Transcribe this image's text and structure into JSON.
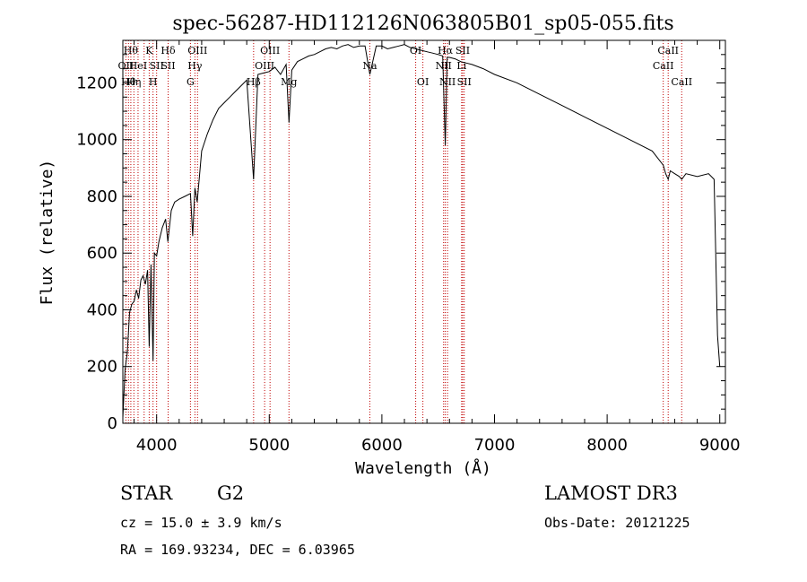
{
  "chart_data": {
    "type": "line",
    "title": "spec-56287-HD112126N063805B01_sp05-055.fits",
    "xlabel": "Wavelength (Å)",
    "ylabel": "Flux (relative)",
    "xlim": [
      3700,
      9050
    ],
    "ylim": [
      0,
      1350
    ],
    "x_ticks": [
      4000,
      5000,
      6000,
      7000,
      8000,
      9000
    ],
    "y_ticks": [
      0,
      200,
      400,
      600,
      800,
      1000,
      1200
    ],
    "grid": false,
    "series": [
      {
        "name": "flux",
        "x": [
          3700,
          3720,
          3740,
          3760,
          3780,
          3800,
          3820,
          3840,
          3860,
          3880,
          3900,
          3920,
          3934,
          3950,
          3968,
          3980,
          4000,
          4020,
          4050,
          4080,
          4100,
          4130,
          4160,
          4200,
          4250,
          4300,
          4320,
          4340,
          4360,
          4400,
          4450,
          4500,
          4550,
          4600,
          4650,
          4700,
          4750,
          4800,
          4861,
          4900,
          4950,
          5000,
          5050,
          5100,
          5150,
          5175,
          5200,
          5250,
          5300,
          5350,
          5400,
          5450,
          5500,
          5550,
          5600,
          5650,
          5700,
          5750,
          5800,
          5850,
          5893,
          5950,
          6000,
          6050,
          6100,
          6150,
          6200,
          6250,
          6300,
          6350,
          6400,
          6450,
          6500,
          6540,
          6563,
          6580,
          6600,
          6650,
          6700,
          6750,
          6800,
          6900,
          7000,
          7200,
          7400,
          7600,
          7800,
          8000,
          8200,
          8400,
          8498,
          8520,
          8542,
          8560,
          8600,
          8640,
          8662,
          8700,
          8800,
          8900,
          8950,
          8980,
          9000
        ],
        "values": [
          20,
          190,
          250,
          390,
          420,
          430,
          470,
          440,
          505,
          520,
          490,
          540,
          270,
          560,
          220,
          600,
          590,
          640,
          690,
          720,
          640,
          750,
          780,
          790,
          800,
          810,
          660,
          830,
          780,
          960,
          1020,
          1070,
          1110,
          1130,
          1150,
          1170,
          1190,
          1210,
          860,
          1230,
          1235,
          1240,
          1255,
          1230,
          1265,
          1060,
          1245,
          1275,
          1285,
          1295,
          1300,
          1310,
          1320,
          1325,
          1320,
          1330,
          1335,
          1325,
          1330,
          1330,
          1230,
          1330,
          1330,
          1320,
          1325,
          1330,
          1335,
          1325,
          1320,
          1315,
          1310,
          1305,
          1300,
          1295,
          980,
          1290,
          1290,
          1285,
          1275,
          1270,
          1265,
          1250,
          1230,
          1200,
          1160,
          1120,
          1080,
          1040,
          1000,
          960,
          910,
          880,
          860,
          890,
          880,
          870,
          860,
          880,
          870,
          880,
          860,
          310,
          200
        ]
      }
    ],
    "lines": [
      {
        "wave": 3727,
        "row": 2,
        "name": "OII"
      },
      {
        "wave": 3750,
        "row": 3,
        "name": "Hθ"
      },
      {
        "wave": 3771,
        "row": 1,
        "name": "Hθ"
      },
      {
        "wave": 3798,
        "row": 3,
        "name": "Hη"
      },
      {
        "wave": 3835,
        "row": 2,
        "name": "HeI"
      },
      {
        "wave": 3889,
        "row": 3,
        "name": ""
      },
      {
        "wave": 3934,
        "row": 1,
        "name": "K"
      },
      {
        "wave": 3968,
        "row": 3,
        "name": "H"
      },
      {
        "wave": 4000,
        "row": 2,
        "name": "SII"
      },
      {
        "wave": 4102,
        "row": 1,
        "name": "Hδ"
      },
      {
        "wave": 4102,
        "row": 2,
        "name": "SII"
      },
      {
        "wave": 4300,
        "row": 3,
        "name": "G"
      },
      {
        "wave": 4340,
        "row": 2,
        "name": "Hγ"
      },
      {
        "wave": 4363,
        "row": 1,
        "name": "OIII"
      },
      {
        "wave": 4861,
        "row": 3,
        "name": "Hβ"
      },
      {
        "wave": 4959,
        "row": 2,
        "name": "OIII"
      },
      {
        "wave": 5007,
        "row": 1,
        "name": "OIII"
      },
      {
        "wave": 5175,
        "row": 3,
        "name": "Mg"
      },
      {
        "wave": 5893,
        "row": 2,
        "name": "Na"
      },
      {
        "wave": 6300,
        "row": 1,
        "name": "OI"
      },
      {
        "wave": 6364,
        "row": 3,
        "name": "OI"
      },
      {
        "wave": 6548,
        "row": 2,
        "name": "NII"
      },
      {
        "wave": 6563,
        "row": 1,
        "name": "Hα"
      },
      {
        "wave": 6583,
        "row": 3,
        "name": "NII"
      },
      {
        "wave": 6708,
        "row": 2,
        "name": "Li"
      },
      {
        "wave": 6717,
        "row": 1,
        "name": "SII"
      },
      {
        "wave": 6731,
        "row": 3,
        "name": "SII"
      },
      {
        "wave": 8498,
        "row": 2,
        "name": "CaII"
      },
      {
        "wave": 8542,
        "row": 1,
        "name": "CaII"
      },
      {
        "wave": 8662,
        "row": 3,
        "name": "CaII"
      }
    ],
    "line_color": "#c00000"
  },
  "info": {
    "object_class": "STAR",
    "subclass": "G2",
    "survey": "LAMOST DR3",
    "cz": "cz = 15.0 ± 3.9 km/s",
    "obs_date": "Obs-Date: 20121225",
    "radec": "RA = 169.93234, DEC =    6.03965"
  }
}
